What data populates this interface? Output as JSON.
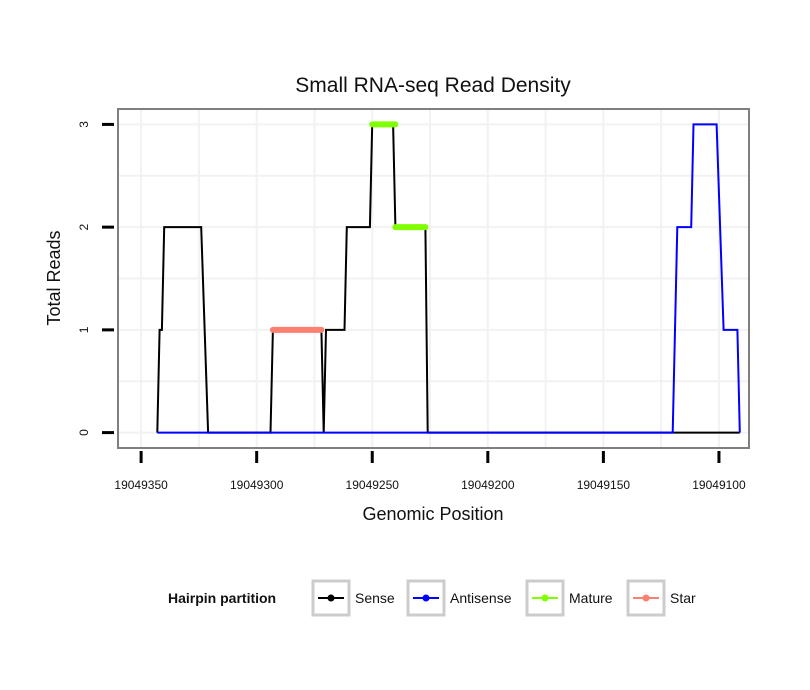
{
  "chart_data": {
    "type": "line",
    "title": "Small RNA-seq Read Density",
    "xlabel": "Genomic Position",
    "ylabel": "Total Reads",
    "x_reversed": true,
    "xlim": [
      19049360,
      19049087
    ],
    "ylim": [
      -0.15,
      3.15
    ],
    "x_ticks": [
      19049350,
      19049300,
      19049250,
      19049200,
      19049150,
      19049100
    ],
    "x_tick_labels": [
      "19049350",
      "19049300",
      "19049250",
      "19049200",
      "19049150",
      "19049100"
    ],
    "y_ticks": [
      0,
      1,
      2,
      3
    ],
    "y_tick_labels": [
      "0",
      "1",
      "2",
      "3"
    ],
    "grid": true,
    "legend_title": "Hairpin partition",
    "legend_position": "bottom",
    "series": [
      {
        "name": "Sense",
        "color": "#000000",
        "width": 2,
        "points": [
          [
            19049343,
            0
          ],
          [
            19049342,
            1
          ],
          [
            19049341,
            1
          ],
          [
            19049340,
            2
          ],
          [
            19049324,
            2
          ],
          [
            19049321,
            0
          ],
          [
            19049294,
            0
          ],
          [
            19049293,
            1
          ],
          [
            19049272,
            1
          ],
          [
            19049271,
            0
          ],
          [
            19049270,
            1
          ],
          [
            19049262,
            1
          ],
          [
            19049261,
            2
          ],
          [
            19049251,
            2
          ],
          [
            19049250,
            3
          ],
          [
            19049241,
            3
          ],
          [
            19049240,
            2
          ],
          [
            19049227,
            2
          ],
          [
            19049226,
            0
          ],
          [
            19049091,
            0
          ]
        ]
      },
      {
        "name": "Antisense",
        "color": "#0000ff",
        "width": 2,
        "points": [
          [
            19049343,
            0
          ],
          [
            19049120,
            0
          ],
          [
            19049118,
            2
          ],
          [
            19049112,
            2
          ],
          [
            19049111,
            3
          ],
          [
            19049101,
            3
          ],
          [
            19049098,
            1
          ],
          [
            19049092,
            1
          ],
          [
            19049091,
            0
          ]
        ]
      },
      {
        "name": "Mature",
        "color": "#7fff00",
        "width": 6,
        "segments": [
          [
            [
              19049250,
              3
            ],
            [
              19049240,
              3
            ]
          ],
          [
            [
              19049240,
              2
            ],
            [
              19049227,
              2
            ]
          ]
        ]
      },
      {
        "name": "Star",
        "color": "#fa8072",
        "width": 6,
        "segments": [
          [
            [
              19049293,
              1
            ],
            [
              19049272,
              1
            ]
          ]
        ]
      }
    ],
    "legend_entries": [
      {
        "name": "Sense",
        "color": "#000000"
      },
      {
        "name": "Antisense",
        "color": "#0000ff"
      },
      {
        "name": "Mature",
        "color": "#7fff00"
      },
      {
        "name": "Star",
        "color": "#fa8072"
      }
    ]
  }
}
